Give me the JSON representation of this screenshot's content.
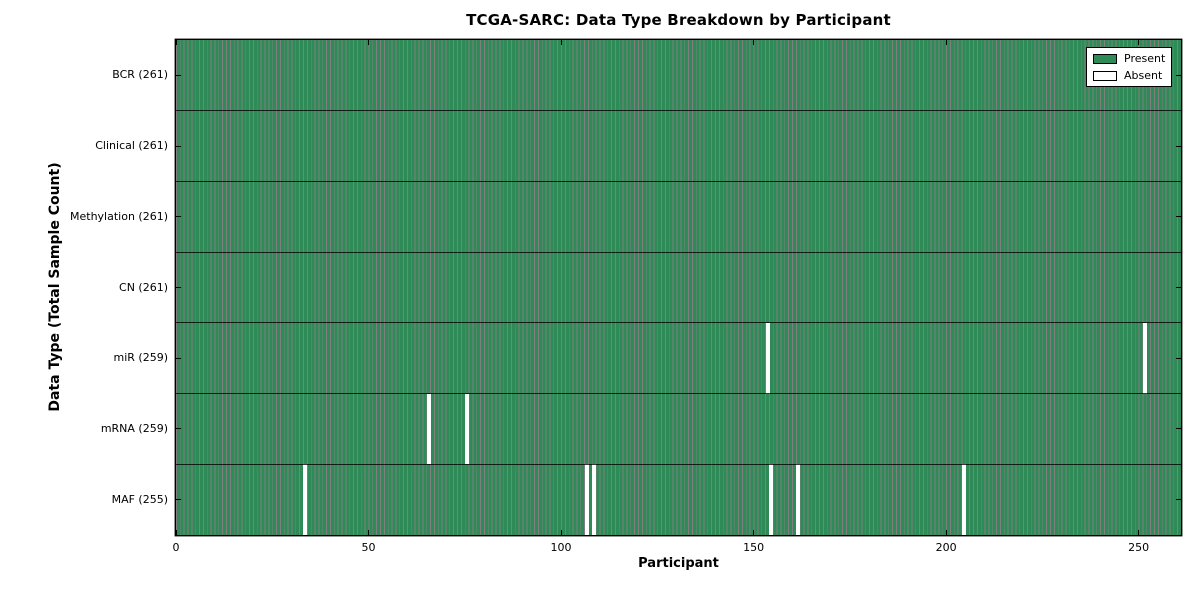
{
  "chart_data": {
    "type": "heatmap",
    "title": "TCGA-SARC: Data Type Breakdown by Participant",
    "xlabel": "Participant",
    "ylabel": "Data Type (Total Sample Count)",
    "x_ticks": [
      0,
      50,
      100,
      150,
      200,
      250
    ],
    "xlim": [
      0,
      261
    ],
    "n_participants": 261,
    "grid": false,
    "legend": {
      "position": "upper right",
      "entries": [
        {
          "label": "Present",
          "color": "#2e8b57"
        },
        {
          "label": "Absent",
          "color": "#ffffff"
        }
      ]
    },
    "colors": {
      "present": "#2e8b57",
      "absent": "#ffffff",
      "bar_edge": "#17462c",
      "spine": "#000000"
    },
    "rows": [
      {
        "name": "BCR",
        "label": "BCR (261)",
        "total": 261,
        "absent_participants": []
      },
      {
        "name": "Clinical",
        "label": "Clinical (261)",
        "total": 261,
        "absent_participants": []
      },
      {
        "name": "Methylation",
        "label": "Methylation (261)",
        "total": 261,
        "absent_participants": []
      },
      {
        "name": "CN",
        "label": "CN (261)",
        "total": 261,
        "absent_participants": []
      },
      {
        "name": "miR",
        "label": "miR (259)",
        "total": 259,
        "absent_participants": [
          153,
          251
        ]
      },
      {
        "name": "mRNA",
        "label": "mRNA (259)",
        "total": 259,
        "absent_participants": [
          65,
          75
        ]
      },
      {
        "name": "MAF",
        "label": "MAF (255)",
        "total": 255,
        "absent_participants": [
          33,
          106,
          108,
          154,
          161,
          204
        ]
      }
    ]
  }
}
